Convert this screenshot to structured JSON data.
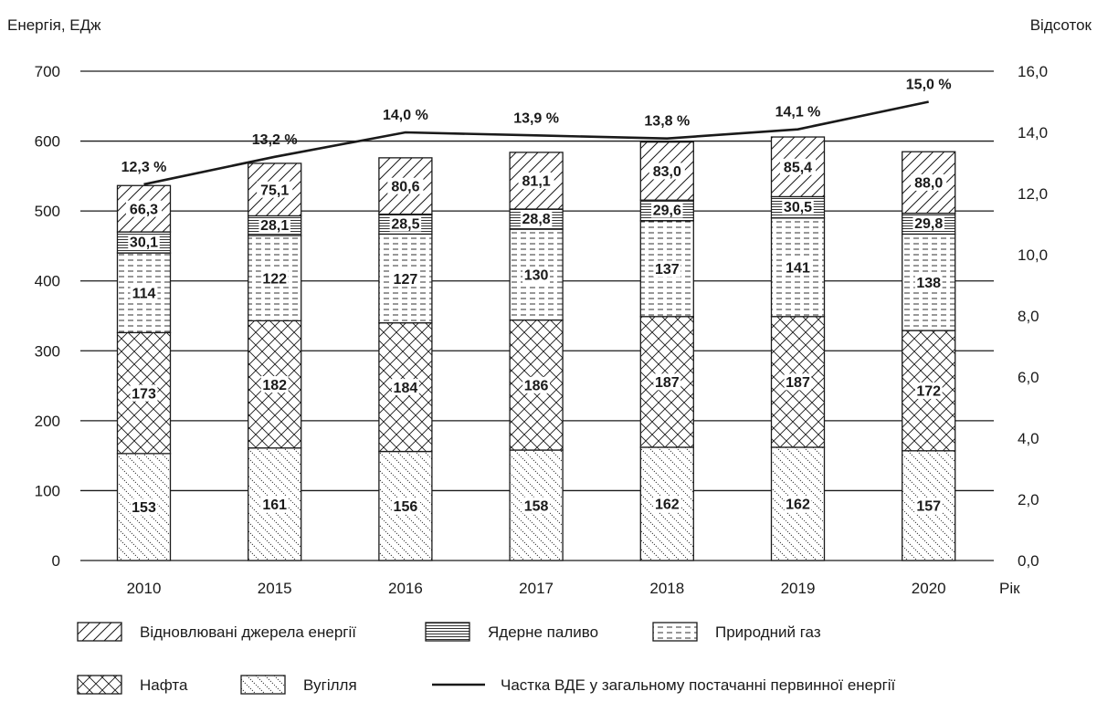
{
  "chart_data": {
    "type": "bar",
    "stacked": true,
    "y_title": "Енергія, ЕДж",
    "y2_title": "Відсоток",
    "x_title": "Рік",
    "categories": [
      "2010",
      "2015",
      "2016",
      "2017",
      "2018",
      "2019",
      "2020"
    ],
    "ylim": [
      0,
      700
    ],
    "yticks": [
      0,
      100,
      200,
      300,
      400,
      500,
      600,
      700
    ],
    "y2lim": [
      0,
      16
    ],
    "y2ticks": [
      "0,0",
      "2,0",
      "4,0",
      "6,0",
      "8,0",
      "10,0",
      "12,0",
      "14,0",
      "16,0"
    ],
    "grid": "horizontal",
    "series": [
      {
        "name": "Вугілля",
        "pattern": "sparse-diagonal",
        "values": [
          153,
          161,
          156,
          158,
          162,
          162,
          157
        ],
        "labels": [
          "153",
          "161",
          "156",
          "158",
          "162",
          "162",
          "157"
        ]
      },
      {
        "name": "Нафта",
        "pattern": "crosshatch",
        "values": [
          173,
          182,
          184,
          186,
          187,
          187,
          172
        ],
        "labels": [
          "173",
          "182",
          "184",
          "186",
          "187",
          "187",
          "172"
        ]
      },
      {
        "name": "Природний газ",
        "pattern": "dashed-horizontal",
        "values": [
          114,
          122,
          127,
          130,
          137,
          141,
          138
        ],
        "labels": [
          "114",
          "122",
          "127",
          "130",
          "137",
          "141",
          "138"
        ]
      },
      {
        "name": "Ядерне паливо",
        "pattern": "horizontal-lines",
        "values": [
          30.1,
          28.1,
          28.5,
          28.8,
          29.6,
          30.5,
          29.8
        ],
        "labels": [
          "30,1",
          "28,1",
          "28,5",
          "28,8",
          "29,6",
          "30,5",
          "29,8"
        ]
      },
      {
        "name": "Відновлювані джерела енергії",
        "pattern": "diagonal",
        "values": [
          66.3,
          75.1,
          80.6,
          81.1,
          83.0,
          85.4,
          88.0
        ],
        "labels": [
          "66,3",
          "75,1",
          "80,6",
          "81,1",
          "83,0",
          "85,4",
          "88,0"
        ]
      }
    ],
    "line": {
      "name": "Частка ВДЕ у загальному постачанні первинної енергії",
      "axis": "right",
      "values": [
        12.3,
        13.2,
        14.0,
        13.9,
        13.8,
        14.1,
        15.0
      ],
      "labels": [
        "12,3 %",
        "13,2 %",
        "14,0 %",
        "13,9 %",
        "13,8 %",
        "14,1 %",
        "15,0 %"
      ]
    },
    "legend": {
      "placement": "bottom",
      "rows": [
        [
          {
            "label": "Відновлювані джерела енергії",
            "pattern": "diagonal"
          },
          {
            "label": "Ядерне паливо",
            "pattern": "horizontal-lines"
          },
          {
            "label": "Природний газ",
            "pattern": "dashed-horizontal"
          }
        ],
        [
          {
            "label": "Нафта",
            "pattern": "crosshatch"
          },
          {
            "label": "Вугілля",
            "pattern": "sparse-diagonal"
          },
          {
            "label": "Частка ВДЕ у загальному постачанні первинної енергії",
            "pattern": "line"
          }
        ]
      ]
    }
  }
}
